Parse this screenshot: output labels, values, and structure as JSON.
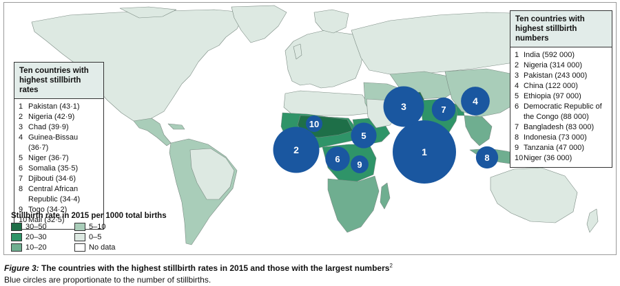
{
  "rates_box": {
    "title_line1": "Ten countries with",
    "title_line2": "highest stillbirth rates",
    "items": [
      {
        "rank": "1",
        "label": "Pakistan (43·1)"
      },
      {
        "rank": "2",
        "label": "Nigeria (42·9)"
      },
      {
        "rank": "3",
        "label": "Chad (39·9)"
      },
      {
        "rank": "4",
        "label": "Guinea-Bissau (36·7)"
      },
      {
        "rank": "5",
        "label": "Niger (36·7)"
      },
      {
        "rank": "6",
        "label": "Somalia (35·5)"
      },
      {
        "rank": "7",
        "label": "Djibouti (34·6)"
      },
      {
        "rank": "8",
        "label": "Central African Republic (34·4)"
      },
      {
        "rank": "9",
        "label": "Togo (34·2)"
      },
      {
        "rank": "10",
        "label": "Mali (32·5)"
      }
    ]
  },
  "numbers_box": {
    "title_line1": "Ten countries with",
    "title_line2": "highest stillbirth numbers",
    "items": [
      {
        "rank": "1",
        "label": "India (592 000)"
      },
      {
        "rank": "2",
        "label": "Nigeria (314 000)"
      },
      {
        "rank": "3",
        "label": "Pakistan (243 000)"
      },
      {
        "rank": "4",
        "label": "China (122 000)"
      },
      {
        "rank": "5",
        "label": "Ethiopia (97 000)"
      },
      {
        "rank": "6",
        "label": "Democratic Republic of the Congo (88 000)"
      },
      {
        "rank": "7",
        "label": "Bangladesh (83 000)"
      },
      {
        "rank": "8",
        "label": "Indonesia (73 000)"
      },
      {
        "rank": "9",
        "label": "Tanzania (47 000)"
      },
      {
        "rank": "10",
        "label": "Niger (36 000)"
      }
    ]
  },
  "circles": [
    {
      "label": "1",
      "country": "India",
      "stillbirths": 592000
    },
    {
      "label": "2",
      "country": "Nigeria",
      "stillbirths": 314000
    },
    {
      "label": "3",
      "country": "Pakistan",
      "stillbirths": 243000
    },
    {
      "label": "4",
      "country": "China",
      "stillbirths": 122000
    },
    {
      "label": "5",
      "country": "Ethiopia",
      "stillbirths": 97000
    },
    {
      "label": "6",
      "country": "Democratic Republic of the Congo",
      "stillbirths": 88000
    },
    {
      "label": "7",
      "country": "Bangladesh",
      "stillbirths": 83000
    },
    {
      "label": "8",
      "country": "Indonesia",
      "stillbirths": 73000
    },
    {
      "label": "9",
      "country": "Tanzania",
      "stillbirths": 47000
    },
    {
      "label": "10",
      "country": "Niger",
      "stillbirths": 36000
    }
  ],
  "legend": {
    "title": "Stillbirth rate in 2015 per 1000 total births",
    "classes": [
      {
        "label": "30–50",
        "color": "#1e6f48"
      },
      {
        "label": "5–10",
        "color": "#a9cdb9"
      },
      {
        "label": "20–30",
        "color": "#2f9468"
      },
      {
        "label": "0–5",
        "color": "#dde9e2"
      },
      {
        "label": "10–20",
        "color": "#6fae90"
      },
      {
        "label": "No data",
        "color": "#ffffff"
      }
    ]
  },
  "colors": {
    "circle": "#1a57a0",
    "circle_text": "#ffffff",
    "land_default": "#dde9e2",
    "border": "#7a8a82"
  },
  "caption": {
    "figure_label": "Figure 3:",
    "title": " The countries with the highest stillbirth rates in 2015 and those with the largest numbers",
    "ref": "2",
    "note": "Blue circles are proportionate to the number of stillbirths."
  }
}
